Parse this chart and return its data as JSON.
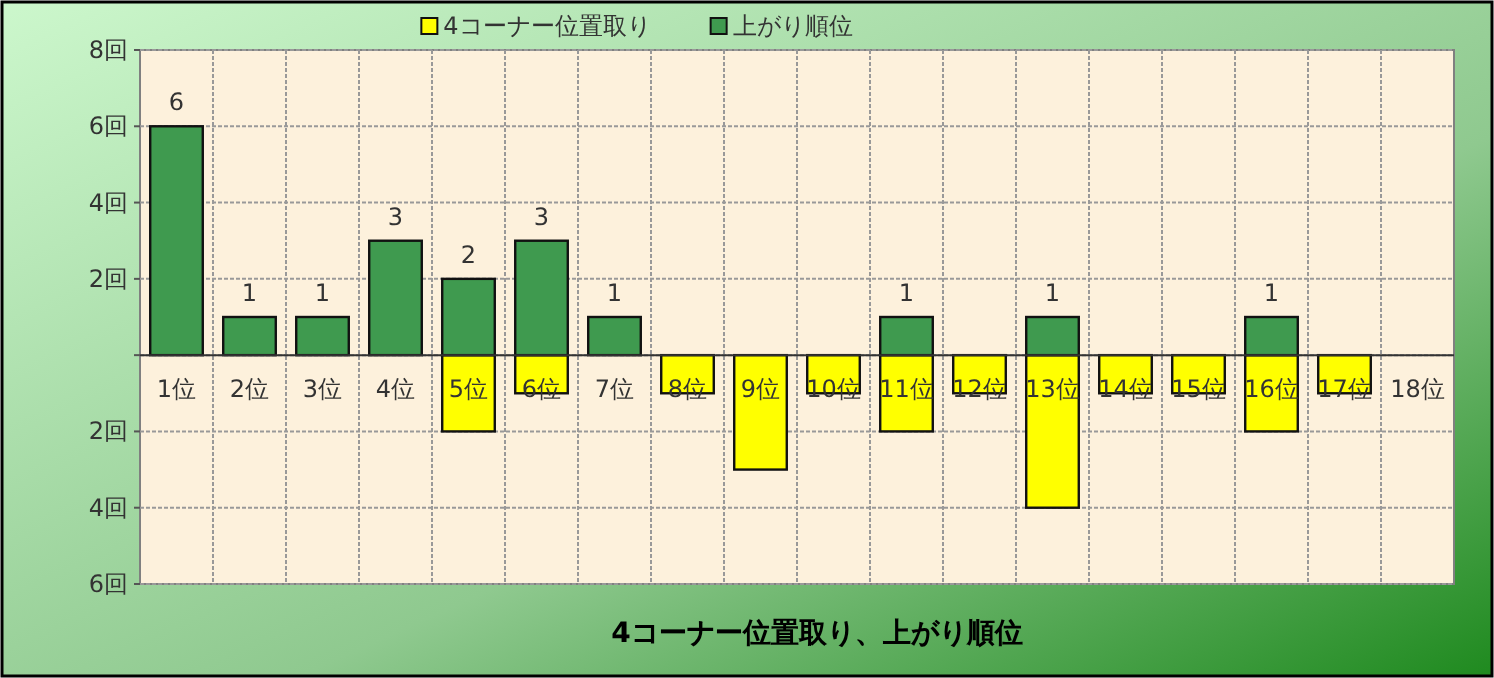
{
  "chart_data": {
    "type": "bar",
    "title": "4コーナー位置取り、上がり順位",
    "categories": [
      "1位",
      "2位",
      "3位",
      "4位",
      "5位",
      "6位",
      "7位",
      "8位",
      "9位",
      "10位",
      "11位",
      "12位",
      "13位",
      "14位",
      "15位",
      "16位",
      "17位",
      "18位"
    ],
    "series": [
      {
        "name": "4コーナー位置取り",
        "color": "#ffff00",
        "values": [
          0,
          0,
          0,
          0,
          -2,
          -1,
          0,
          -1,
          -3,
          -1,
          -2,
          -1,
          -4,
          -1,
          -1,
          -2,
          -1,
          0
        ]
      },
      {
        "name": "上がり順位",
        "color": "#3f9a4f",
        "values": [
          6,
          1,
          1,
          3,
          2,
          3,
          1,
          0,
          0,
          0,
          1,
          0,
          1,
          0,
          0,
          1,
          0,
          0
        ],
        "value_labels": [
          "6",
          "1",
          "1",
          "3",
          "2",
          "3",
          "1",
          null,
          null,
          null,
          "1",
          null,
          "1",
          null,
          null,
          "1",
          null,
          null
        ]
      }
    ],
    "ylim": [
      -6,
      8
    ],
    "yticks": [
      {
        "value": 8,
        "label": "8回"
      },
      {
        "value": 6,
        "label": "6回"
      },
      {
        "value": 4,
        "label": "4回"
      },
      {
        "value": 2,
        "label": "2回"
      },
      {
        "value": 0,
        "label": null
      },
      {
        "value": -2,
        "label": "2回"
      },
      {
        "value": -4,
        "label": "4回"
      },
      {
        "value": -6,
        "label": "6回"
      }
    ],
    "grid": true,
    "legend": "top"
  }
}
